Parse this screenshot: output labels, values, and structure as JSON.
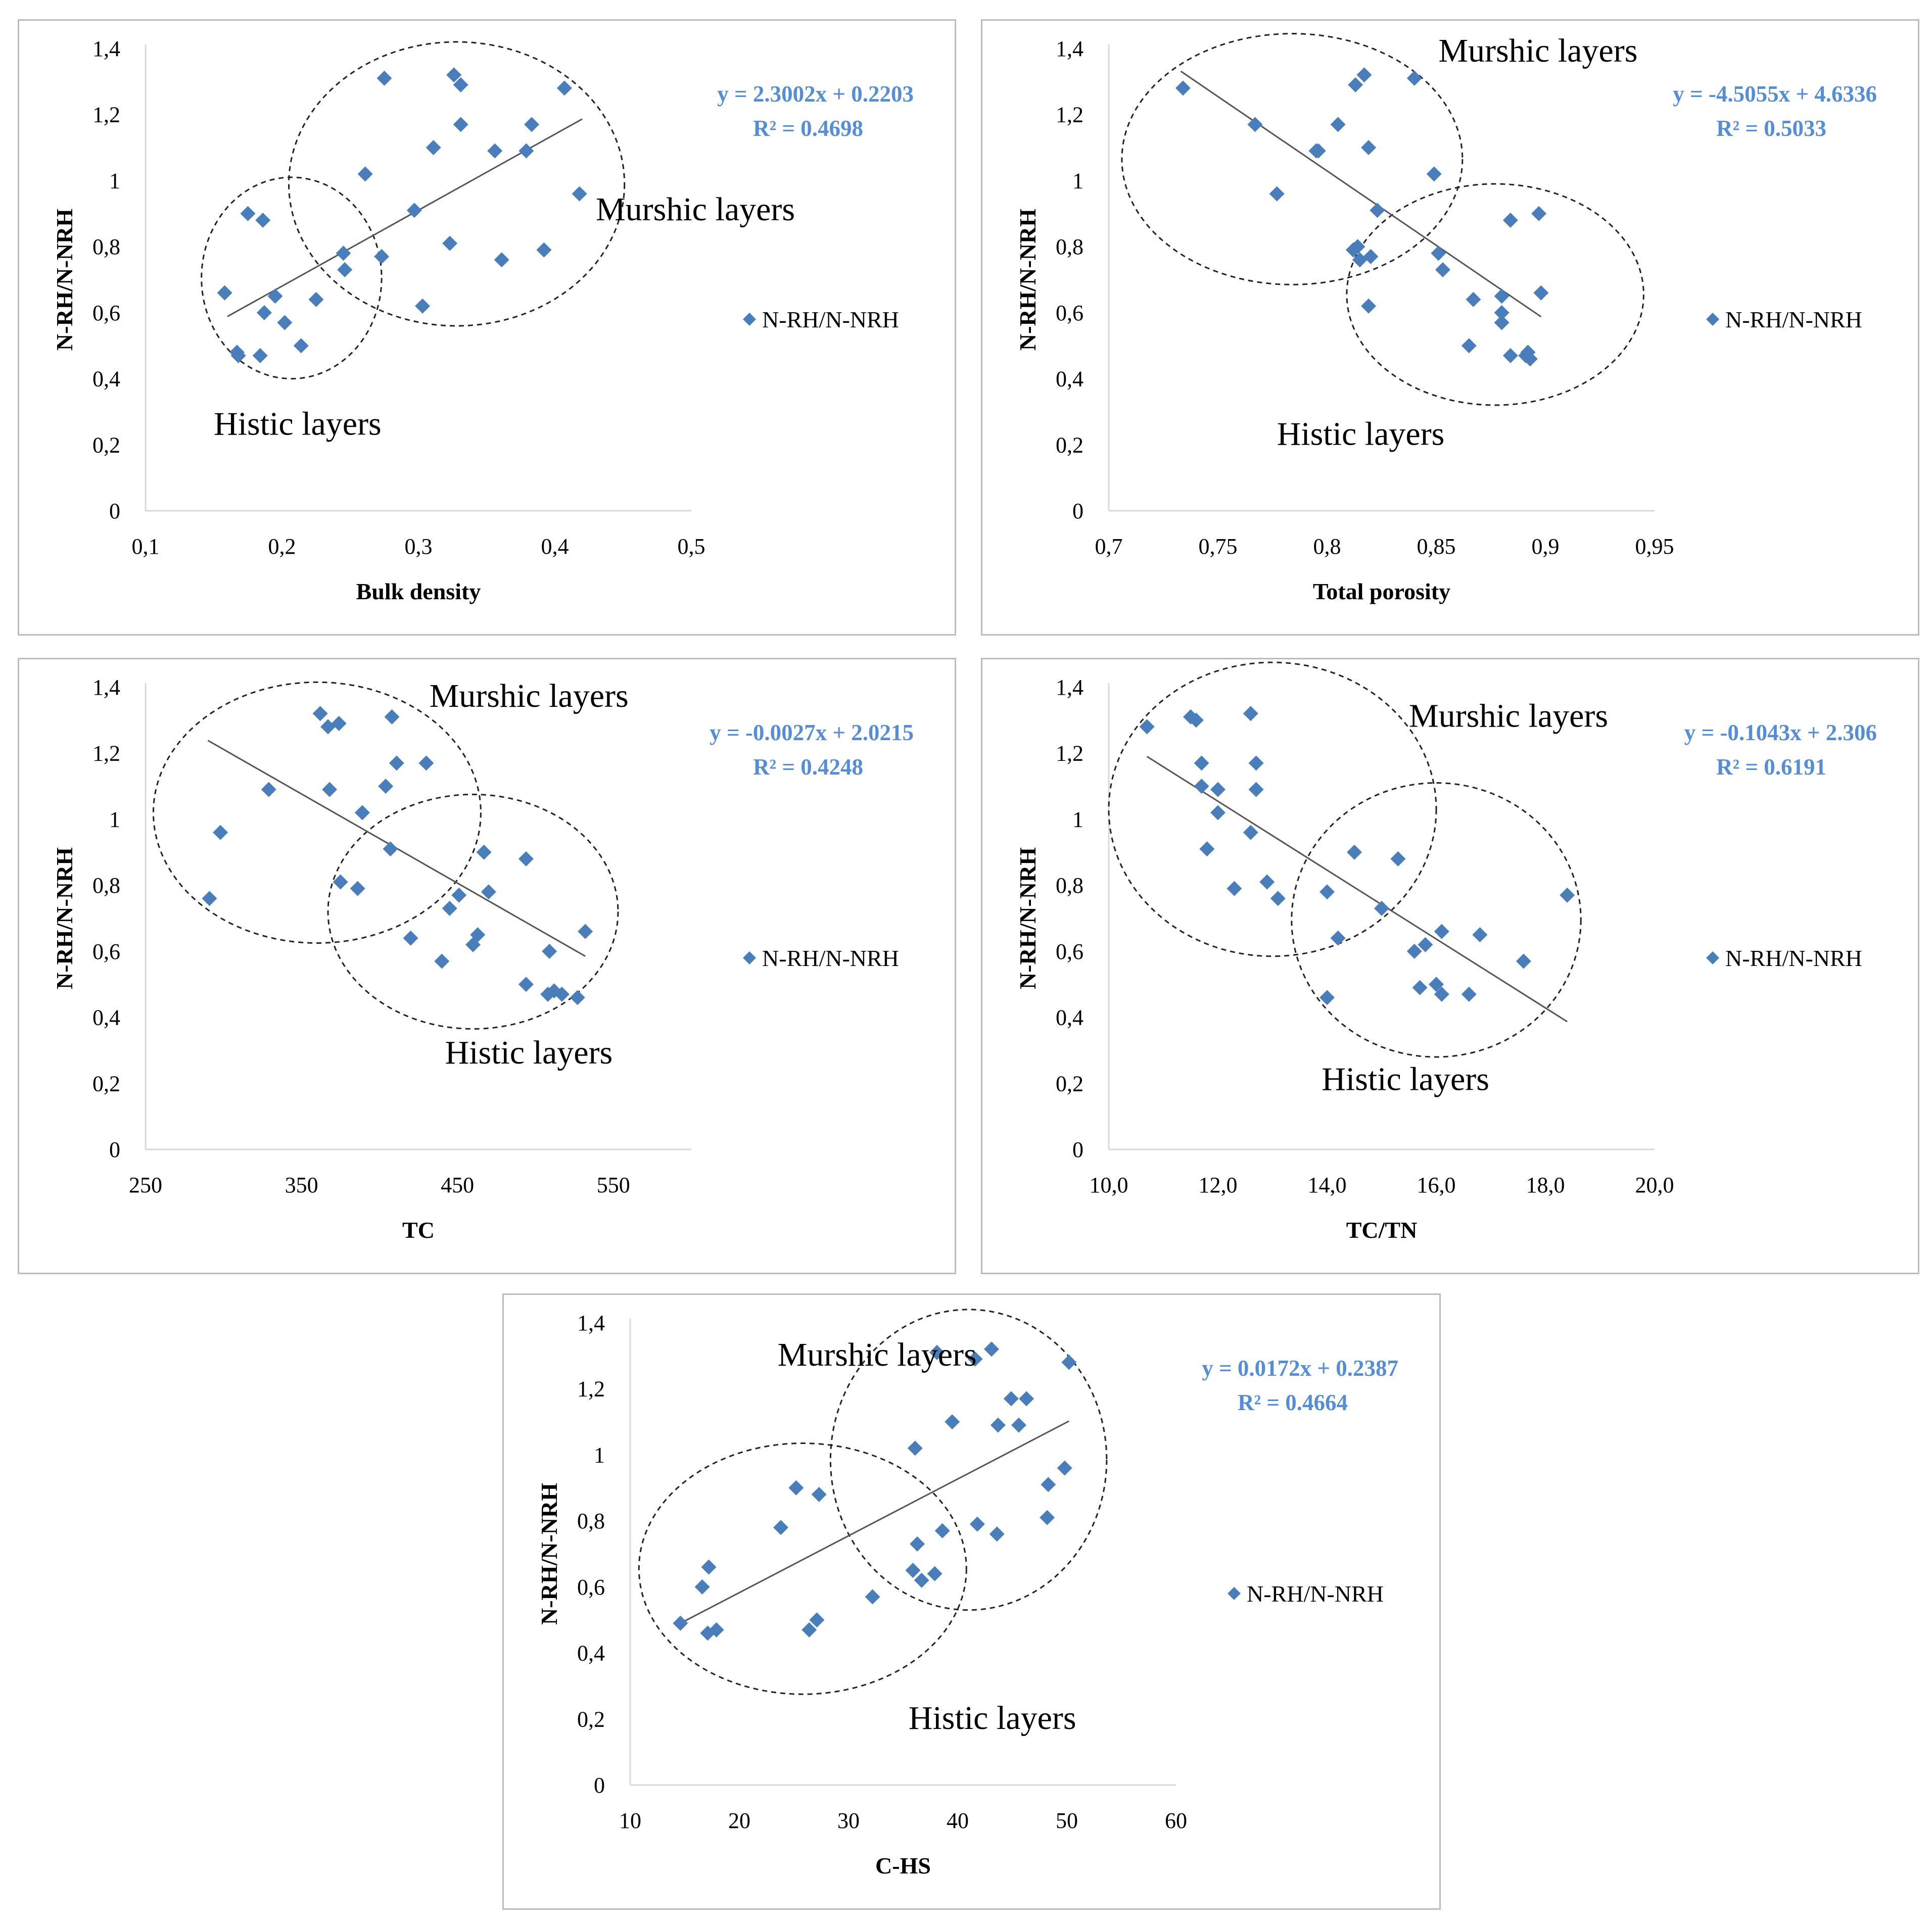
{
  "colors": {
    "marker": "#4a7ebb",
    "equation": "#558ed5",
    "trendline": "#555555",
    "axis": "#d9d9d9",
    "text": "#000000",
    "border": "#bcbcbc"
  },
  "chart_data": [
    {
      "type": "scatter",
      "xlabel": "Bulk density",
      "ylabel": "N-RH/N-NRH",
      "xlim": [
        0.1,
        0.5
      ],
      "xticks": [
        0.1,
        0.2,
        0.3,
        0.4,
        0.5
      ],
      "xtick_labels": [
        "0,1",
        "0,2",
        "0,3",
        "0,4",
        "0,5"
      ],
      "ylim": [
        0,
        1.4
      ],
      "yticks": [
        0,
        0.2,
        0.4,
        0.6,
        0.8,
        1.0,
        1.2,
        1.4
      ],
      "ytick_labels": [
        "0",
        "0,2",
        "0,4",
        "0,6",
        "0,8",
        "1",
        "1,2",
        "1,4"
      ],
      "legend": "N-RH/N-NRH",
      "legend_position": "right",
      "equation": "y = 2.3002x + 0.2203",
      "r2": "R² = 0.4698",
      "trend": {
        "slope": 2.3002,
        "intercept": 0.2203,
        "x_range": [
          0.16,
          0.42
        ]
      },
      "annotations": [
        {
          "text": "Murshic layers",
          "x": 0.43,
          "y": 0.88
        },
        {
          "text": "Histic layers",
          "x": 0.15,
          "y": 0.23
        }
      ],
      "ellipses": [
        {
          "cx": 0.328,
          "cy": 0.99,
          "rx": 0.123,
          "ry": 0.43
        },
        {
          "cx": 0.207,
          "cy": 0.705,
          "rx": 0.066,
          "ry": 0.305
        }
      ],
      "points": [
        [
          0.158,
          0.66
        ],
        [
          0.167,
          0.48
        ],
        [
          0.168,
          0.47
        ],
        [
          0.175,
          0.9
        ],
        [
          0.184,
          0.47
        ],
        [
          0.186,
          0.88
        ],
        [
          0.187,
          0.6
        ],
        [
          0.195,
          0.65
        ],
        [
          0.202,
          0.57
        ],
        [
          0.214,
          0.5
        ],
        [
          0.225,
          0.64
        ],
        [
          0.245,
          0.78
        ],
        [
          0.246,
          0.73
        ],
        [
          0.261,
          1.02
        ],
        [
          0.273,
          0.77
        ],
        [
          0.275,
          1.31
        ],
        [
          0.297,
          0.91
        ],
        [
          0.303,
          0.62
        ],
        [
          0.311,
          1.1
        ],
        [
          0.323,
          0.81
        ],
        [
          0.326,
          1.32
        ],
        [
          0.331,
          1.29
        ],
        [
          0.331,
          1.17
        ],
        [
          0.356,
          1.09
        ],
        [
          0.361,
          0.76
        ],
        [
          0.379,
          1.09
        ],
        [
          0.383,
          1.17
        ],
        [
          0.392,
          0.79
        ],
        [
          0.407,
          1.28
        ],
        [
          0.418,
          0.96
        ]
      ]
    },
    {
      "type": "scatter",
      "xlabel": "Total porosity",
      "ylabel": "N-RH/N-NRH",
      "xlim": [
        0.7,
        0.95
      ],
      "xticks": [
        0.7,
        0.75,
        0.8,
        0.85,
        0.9,
        0.95
      ],
      "xtick_labels": [
        "0,7",
        "0,75",
        "0,8",
        "0,85",
        "0,9",
        "0,95"
      ],
      "ylim": [
        0,
        1.4
      ],
      "yticks": [
        0,
        0.2,
        0.4,
        0.6,
        0.8,
        1.0,
        1.2,
        1.4
      ],
      "ytick_labels": [
        "0",
        "0,2",
        "0,4",
        "0,6",
        "0,8",
        "1",
        "1,2",
        "1,4"
      ],
      "legend": "N-RH/N-NRH",
      "legend_position": "right",
      "equation": "y = -4.5055x + 4.6336",
      "r2": "R² = 0.5033",
      "trend": {
        "slope": -4.5055,
        "intercept": 4.6336,
        "x_range": [
          0.733,
          0.898
        ]
      },
      "annotations": [
        {
          "text": "Murshic layers",
          "x": 0.851,
          "y": 1.36
        },
        {
          "text": "Histic layers",
          "x": 0.777,
          "y": 0.2
        }
      ],
      "ellipses": [
        {
          "cx": 0.784,
          "cy": 1.065,
          "rx": 0.078,
          "ry": 0.38
        },
        {
          "cx": 0.877,
          "cy": 0.655,
          "rx": 0.068,
          "ry": 0.335
        }
      ],
      "points": [
        [
          0.734,
          1.28
        ],
        [
          0.767,
          1.17
        ],
        [
          0.777,
          0.96
        ],
        [
          0.795,
          1.09
        ],
        [
          0.796,
          1.09
        ],
        [
          0.805,
          1.17
        ],
        [
          0.812,
          0.79
        ],
        [
          0.813,
          1.29
        ],
        [
          0.814,
          0.8
        ],
        [
          0.815,
          0.76
        ],
        [
          0.817,
          1.32
        ],
        [
          0.819,
          1.1
        ],
        [
          0.819,
          0.62
        ],
        [
          0.82,
          0.77
        ],
        [
          0.823,
          0.91
        ],
        [
          0.84,
          1.31
        ],
        [
          0.849,
          1.02
        ],
        [
          0.851,
          0.78
        ],
        [
          0.853,
          0.73
        ],
        [
          0.865,
          0.5
        ],
        [
          0.867,
          0.64
        ],
        [
          0.88,
          0.65
        ],
        [
          0.88,
          0.6
        ],
        [
          0.88,
          0.57
        ],
        [
          0.884,
          0.88
        ],
        [
          0.884,
          0.47
        ],
        [
          0.891,
          0.47
        ],
        [
          0.892,
          0.48
        ],
        [
          0.893,
          0.46
        ],
        [
          0.897,
          0.9
        ],
        [
          0.898,
          0.66
        ]
      ]
    },
    {
      "type": "scatter",
      "xlabel": "TC",
      "ylabel": "N-RH/N-NRH",
      "xlim": [
        250,
        600
      ],
      "xticks": [
        250,
        350,
        450,
        550
      ],
      "xtick_labels": [
        "250",
        "350",
        "450",
        "550"
      ],
      "ylim": [
        0,
        1.4
      ],
      "yticks": [
        0,
        0.2,
        0.4,
        0.6,
        0.8,
        1.0,
        1.2,
        1.4
      ],
      "ytick_labels": [
        "0",
        "0,2",
        "0,4",
        "0,6",
        "0,8",
        "1",
        "1,2",
        "1,4"
      ],
      "legend": "N-RH/N-NRH",
      "legend_position": "right",
      "equation": "y = -0.0027x + 2.0215",
      "r2": "R² = 0.4248",
      "trend": {
        "slope": -0.0027,
        "intercept": 2.0215,
        "x_range": [
          290,
          532
        ]
      },
      "annotations": [
        {
          "text": "Murshic layers",
          "x": 432,
          "y": 1.34
        },
        {
          "text": "Histic layers",
          "x": 442,
          "y": 0.26
        }
      ],
      "ellipses": [
        {
          "cx": 360,
          "cy": 1.02,
          "rx": 105,
          "ry": 0.395
        },
        {
          "cx": 460,
          "cy": 0.72,
          "rx": 93,
          "ry": 0.355
        }
      ],
      "points": [
        [
          291,
          0.76
        ],
        [
          298,
          0.96
        ],
        [
          329,
          1.09
        ],
        [
          362,
          1.32
        ],
        [
          367,
          1.28
        ],
        [
          368,
          1.09
        ],
        [
          374,
          1.29
        ],
        [
          375,
          0.81
        ],
        [
          386,
          0.79
        ],
        [
          389,
          1.02
        ],
        [
          404,
          1.1
        ],
        [
          407,
          0.91
        ],
        [
          408,
          1.31
        ],
        [
          411,
          1.17
        ],
        [
          420,
          0.64
        ],
        [
          430,
          1.17
        ],
        [
          440,
          0.57
        ],
        [
          445,
          0.73
        ],
        [
          451,
          0.77
        ],
        [
          460,
          0.62
        ],
        [
          463,
          0.65
        ],
        [
          467,
          0.9
        ],
        [
          470,
          0.78
        ],
        [
          494,
          0.88
        ],
        [
          494,
          0.5
        ],
        [
          508,
          0.47
        ],
        [
          509,
          0.6
        ],
        [
          512,
          0.48
        ],
        [
          517,
          0.47
        ],
        [
          527,
          0.46
        ],
        [
          532,
          0.66
        ]
      ]
    },
    {
      "type": "scatter",
      "xlabel": "TC/TN",
      "ylabel": "N-RH/N-NRH",
      "xlim": [
        10,
        20
      ],
      "xticks": [
        10,
        12,
        14,
        16,
        18,
        20
      ],
      "xtick_labels": [
        "10,0",
        "12,0",
        "14,0",
        "16,0",
        "18,0",
        "20,0"
      ],
      "ylim": [
        0,
        1.4
      ],
      "yticks": [
        0,
        0.2,
        0.4,
        0.6,
        0.8,
        1.0,
        1.2,
        1.4
      ],
      "ytick_labels": [
        "0",
        "0,2",
        "0,4",
        "0,6",
        "0,8",
        "1",
        "1,2",
        "1,4"
      ],
      "legend": "N-RH/N-NRH",
      "legend_position": "right",
      "equation": "y = -0.1043x + 2.306",
      "r2": "R² = 0.6191",
      "trend": {
        "slope": -0.1043,
        "intercept": 2.306,
        "x_range": [
          10.7,
          18.4
        ]
      },
      "annotations": [
        {
          "text": "Murshic layers",
          "x": 15.5,
          "y": 1.28
        },
        {
          "text": "Histic layers",
          "x": 13.9,
          "y": 0.18
        }
      ],
      "ellipses": [
        {
          "cx": 13.0,
          "cy": 1.03,
          "rx": 3.0,
          "ry": 0.445
        },
        {
          "cx": 16.0,
          "cy": 0.695,
          "rx": 2.65,
          "ry": 0.415
        }
      ],
      "points": [
        [
          10.7,
          1.28
        ],
        [
          11.5,
          1.31
        ],
        [
          11.6,
          1.3
        ],
        [
          11.7,
          1.17
        ],
        [
          11.7,
          1.1
        ],
        [
          11.8,
          0.91
        ],
        [
          12.0,
          1.09
        ],
        [
          12.0,
          1.02
        ],
        [
          12.3,
          0.79
        ],
        [
          12.6,
          1.32
        ],
        [
          12.6,
          0.96
        ],
        [
          12.7,
          1.17
        ],
        [
          12.7,
          1.09
        ],
        [
          12.9,
          0.81
        ],
        [
          13.1,
          0.76
        ],
        [
          14.0,
          0.46
        ],
        [
          14.0,
          0.78
        ],
        [
          14.2,
          0.64
        ],
        [
          14.5,
          0.9
        ],
        [
          15.0,
          0.73
        ],
        [
          15.3,
          0.88
        ],
        [
          15.6,
          0.6
        ],
        [
          15.7,
          0.49
        ],
        [
          15.8,
          0.62
        ],
        [
          16.0,
          0.5
        ],
        [
          16.1,
          0.47
        ],
        [
          16.1,
          0.66
        ],
        [
          16.6,
          0.47
        ],
        [
          16.8,
          0.65
        ],
        [
          17.6,
          0.57
        ],
        [
          18.4,
          0.77
        ]
      ]
    },
    {
      "type": "scatter",
      "xlabel": "C-HS",
      "ylabel": "N-RH/N-NRH",
      "xlim": [
        10,
        60
      ],
      "xticks": [
        10,
        20,
        30,
        40,
        50,
        60
      ],
      "xtick_labels": [
        "10",
        "20",
        "30",
        "40",
        "50",
        "60"
      ],
      "ylim": [
        0,
        1.4
      ],
      "yticks": [
        0,
        0.2,
        0.4,
        0.6,
        0.8,
        1.0,
        1.2,
        1.4
      ],
      "ytick_labels": [
        "0",
        "0,2",
        "0,4",
        "0,6",
        "0,8",
        "1",
        "1,2",
        "1,4"
      ],
      "legend": "N-RH/N-NRH",
      "legend_position": "right",
      "equation": "y = 0.0172x + 0.2387",
      "r2": "R² = 0.4664",
      "trend": {
        "slope": 0.0172,
        "intercept": 0.2387,
        "x_range": [
          14.6,
          50.2
        ]
      },
      "annotations": [
        {
          "text": "Murshic layers",
          "x": 23.5,
          "y": 1.27
        },
        {
          "text": "Histic layers",
          "x": 35.5,
          "y": 0.17
        }
      ],
      "ellipses": [
        {
          "cx": 41.0,
          "cy": 0.985,
          "rx": 12.65,
          "ry": 0.455
        },
        {
          "cx": 25.8,
          "cy": 0.655,
          "rx": 15.0,
          "ry": 0.38
        }
      ],
      "points": [
        [
          14.6,
          0.49
        ],
        [
          16.6,
          0.6
        ],
        [
          17.1,
          0.46
        ],
        [
          17.2,
          0.66
        ],
        [
          17.9,
          0.47
        ],
        [
          23.8,
          0.78
        ],
        [
          25.2,
          0.9
        ],
        [
          26.4,
          0.47
        ],
        [
          27.1,
          0.5
        ],
        [
          27.3,
          0.88
        ],
        [
          32.2,
          0.57
        ],
        [
          35.9,
          0.65
        ],
        [
          36.1,
          1.02
        ],
        [
          36.3,
          0.73
        ],
        [
          36.7,
          0.62
        ],
        [
          37.9,
          0.64
        ],
        [
          38.1,
          1.31
        ],
        [
          38.6,
          0.77
        ],
        [
          39.5,
          1.1
        ],
        [
          41.6,
          1.29
        ],
        [
          41.8,
          0.79
        ],
        [
          43.1,
          1.32
        ],
        [
          43.6,
          0.76
        ],
        [
          43.7,
          1.09
        ],
        [
          44.9,
          1.17
        ],
        [
          45.6,
          1.09
        ],
        [
          46.3,
          1.17
        ],
        [
          48.2,
          0.81
        ],
        [
          48.3,
          0.91
        ],
        [
          49.8,
          0.96
        ],
        [
          50.2,
          1.28
        ]
      ]
    }
  ]
}
